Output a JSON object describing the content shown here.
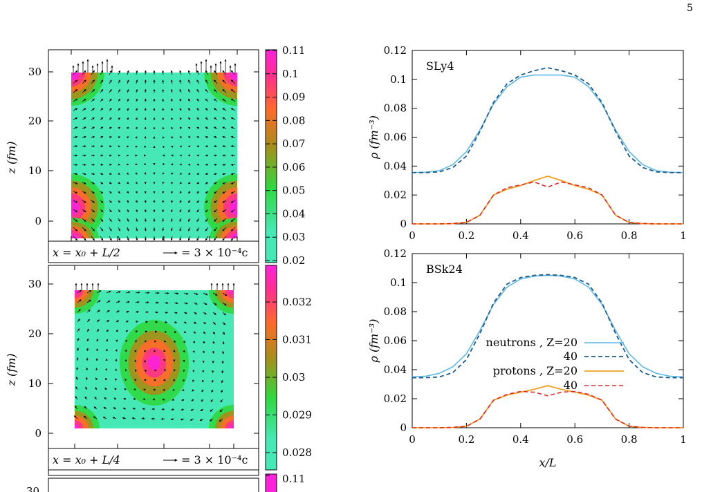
{
  "page_number": "5",
  "colors": {
    "neutron_line": "#5bb8e6",
    "neutron_dash": "#1a5a8f",
    "proton_line": "#f0a020",
    "proton_dash": "#e02828",
    "field_background": "#46e8b5",
    "colormap": [
      "#46e8b5",
      "#2fd83f",
      "#a88d1a",
      "#ff6a2a",
      "#ff3388",
      "#ff22dd"
    ]
  },
  "left_panels": [
    {
      "id": "panel-a",
      "ylabel": "z (fm)",
      "yticks": [
        "30",
        "20",
        "10",
        "0"
      ],
      "annotation_position": "x = x₀ + L/2",
      "annotation_arrow": "= 3 × 10⁻⁴c",
      "colorbar_ticks": [
        "0.11",
        "0.1",
        "0.09",
        "0.08",
        "0.07",
        "0.06",
        "0.05",
        "0.04",
        "0.03",
        "0.02"
      ]
    },
    {
      "id": "panel-b",
      "ylabel": "z (fm)",
      "yticks": [
        "30",
        "20",
        "10",
        "0"
      ],
      "annotation_position": "x = x₀ + L/4",
      "annotation_arrow": "= 3 × 10⁻⁴c",
      "colorbar_ticks": [
        "0.032",
        "0.031",
        "0.03",
        "0.029",
        "0.028"
      ]
    },
    {
      "id": "panel-c",
      "yticks": [
        "30"
      ],
      "colorbar_ticks": [
        "0.11"
      ]
    }
  ],
  "chart_data": [
    {
      "type": "line",
      "label": "SLy4",
      "xlabel": "",
      "ylabel": "ρ (fm⁻³)",
      "xlim": [
        0,
        1
      ],
      "ylim": [
        0,
        0.12
      ],
      "xticks": [
        "0",
        "0.2",
        "0.4",
        "0.6",
        "0.8",
        "1"
      ],
      "yticks": [
        "0",
        "0.02",
        "0.04",
        "0.06",
        "0.08",
        "0.1",
        "0.12"
      ],
      "x": [
        0,
        0.05,
        0.1,
        0.15,
        0.2,
        0.25,
        0.3,
        0.35,
        0.4,
        0.45,
        0.5,
        0.55,
        0.6,
        0.65,
        0.7,
        0.75,
        0.8,
        0.85,
        0.9,
        0.95,
        1
      ],
      "series": [
        {
          "values": [
            0.0355,
            0.0358,
            0.0368,
            0.041,
            0.05,
            0.065,
            0.083,
            0.095,
            0.1015,
            0.103,
            0.103,
            0.103,
            0.1015,
            0.095,
            0.083,
            0.065,
            0.05,
            0.041,
            0.0368,
            0.0358,
            0.0355
          ]
        },
        {
          "values": [
            0.0355,
            0.0355,
            0.036,
            0.039,
            0.047,
            0.064,
            0.084,
            0.097,
            0.103,
            0.106,
            0.108,
            0.106,
            0.103,
            0.097,
            0.084,
            0.064,
            0.047,
            0.039,
            0.036,
            0.0355,
            0.0355
          ]
        },
        {
          "values": [
            0,
            0,
            0,
            0.0002,
            0.001,
            0.006,
            0.02,
            0.024,
            0.0265,
            0.03,
            0.033,
            0.03,
            0.0265,
            0.024,
            0.02,
            0.006,
            0.001,
            0.0002,
            0,
            0,
            0
          ]
        },
        {
          "values": [
            0,
            0,
            0,
            0.0002,
            0.001,
            0.006,
            0.02,
            0.025,
            0.027,
            0.029,
            0.0255,
            0.029,
            0.027,
            0.025,
            0.02,
            0.006,
            0.001,
            0.0002,
            0,
            0,
            0
          ]
        }
      ]
    },
    {
      "type": "line",
      "label": "BSk24",
      "xlabel": "x/L",
      "ylabel": "ρ (fm⁻³)",
      "xlim": [
        0,
        1
      ],
      "ylim": [
        0,
        0.12
      ],
      "xticks": [
        "0",
        "0.2",
        "0.4",
        "0.6",
        "0.8",
        "1"
      ],
      "yticks": [
        "0",
        "0.02",
        "0.04",
        "0.06",
        "0.08",
        "0.1",
        "0.12"
      ],
      "legend": {
        "neutrons_label": "neutrons , Z=20",
        "neutrons_label2": "40",
        "protons_label": "protons , Z=20",
        "protons_label2": "40"
      },
      "x": [
        0,
        0.05,
        0.1,
        0.15,
        0.2,
        0.25,
        0.3,
        0.35,
        0.4,
        0.45,
        0.5,
        0.55,
        0.6,
        0.65,
        0.7,
        0.75,
        0.8,
        0.85,
        0.9,
        0.95,
        1
      ],
      "series": [
        {
          "name": "neutrons , Z=20",
          "values": [
            0.035,
            0.0355,
            0.0375,
            0.042,
            0.051,
            0.067,
            0.085,
            0.097,
            0.1025,
            0.1045,
            0.105,
            0.1045,
            0.1025,
            0.097,
            0.085,
            0.067,
            0.051,
            0.042,
            0.0375,
            0.0355,
            0.035
          ]
        },
        {
          "name": "40",
          "values": [
            0.0345,
            0.0345,
            0.035,
            0.038,
            0.047,
            0.065,
            0.086,
            0.099,
            0.1035,
            0.105,
            0.1055,
            0.105,
            0.1035,
            0.099,
            0.086,
            0.065,
            0.047,
            0.038,
            0.035,
            0.0345,
            0.0345
          ]
        },
        {
          "name": "protons , Z=20",
          "values": [
            0,
            0,
            0,
            0.0002,
            0.001,
            0.006,
            0.019,
            0.0225,
            0.0245,
            0.0265,
            0.029,
            0.0265,
            0.0245,
            0.0225,
            0.019,
            0.006,
            0.001,
            0.0002,
            0,
            0,
            0
          ]
        },
        {
          "name": "40",
          "values": [
            0,
            0,
            0,
            0.0002,
            0.001,
            0.006,
            0.019,
            0.023,
            0.025,
            0.0245,
            0.022,
            0.0245,
            0.025,
            0.023,
            0.019,
            0.006,
            0.001,
            0.0002,
            0,
            0,
            0
          ]
        }
      ]
    }
  ]
}
